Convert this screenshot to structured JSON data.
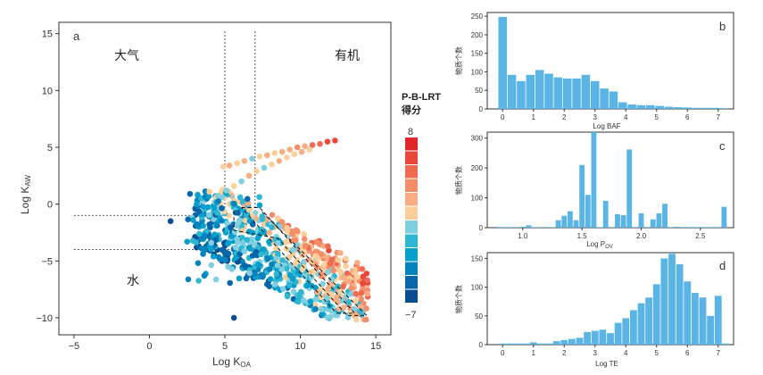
{
  "chart_data": [
    {
      "panel": "a",
      "type": "scatter",
      "xlabel": "Log K",
      "xlabel_sub": "OA",
      "ylabel": "Log K",
      "ylabel_sub": "AW",
      "xlim": [
        -6,
        16
      ],
      "ylim": [
        -11.5,
        16
      ],
      "xticks": [
        -5,
        0,
        5,
        10,
        15
      ],
      "yticks": [
        -10,
        -5,
        0,
        5,
        10,
        15
      ],
      "region_labels": {
        "top_left": "大气",
        "top_right": "有机",
        "bottom_left": "水"
      },
      "colorbar": {
        "title_line1": "P-B-LRT",
        "title_line2": "得分",
        "max_label": "8",
        "min_label": "−7",
        "colors": [
          "#e0282a",
          "#e8473a",
          "#ef6a50",
          "#f48e6a",
          "#f8ad85",
          "#fbcf9a",
          "#7fcfe0",
          "#2fb7d1",
          "#079fcc",
          "#0682bd",
          "#0866a8",
          "#0a4e91"
        ]
      },
      "guide_lines": {
        "vertical_x": [
          5,
          7
        ],
        "horizontal_y": [
          -1,
          -4
        ]
      },
      "series": [
        {
          "name": "upper-band",
          "x": [
            4.9,
            5.3,
            5.8,
            6.3,
            6.8,
            7.3,
            7.8,
            8.3,
            8.8,
            9.3,
            9.8,
            10.3,
            10.8,
            11.3,
            11.8,
            12.3,
            5.1,
            5.6,
            6.1,
            6.6,
            7.1,
            7.6,
            8.1,
            8.6,
            9.1,
            9.6,
            10.1,
            10.6
          ],
          "y": [
            3.3,
            3.4,
            3.6,
            3.8,
            4.0,
            4.2,
            4.3,
            4.5,
            4.6,
            4.8,
            5.0,
            5.1,
            5.2,
            5.3,
            5.5,
            5.6,
            1.2,
            1.6,
            2.0,
            2.5,
            2.9,
            3.2,
            3.5,
            3.8,
            4.1,
            4.4,
            4.6,
            4.8
          ],
          "score": [
            1,
            2,
            1,
            2,
            0,
            1,
            2,
            1,
            3,
            2,
            4,
            3,
            5,
            5,
            6,
            6,
            0,
            1,
            0,
            2,
            1,
            0,
            1,
            2,
            1,
            1,
            2,
            1
          ]
        }
      ]
    },
    {
      "panel": "b",
      "type": "bar",
      "xlabel": "Log BAF",
      "ylabel": "物质个数",
      "xlim": [
        -0.5,
        7.5
      ],
      "ylim": [
        0,
        260
      ],
      "xticks": [
        0,
        1,
        2,
        3,
        4,
        5,
        6,
        7
      ],
      "yticks": [
        0,
        50,
        100,
        150,
        200,
        250
      ],
      "bin_width": 0.3,
      "x": [
        0.0,
        0.3,
        0.6,
        0.9,
        1.2,
        1.5,
        1.8,
        2.1,
        2.4,
        2.7,
        3.0,
        3.3,
        3.6,
        3.9,
        4.2,
        4.5,
        4.8,
        5.1,
        5.4,
        5.7,
        6.0,
        6.3,
        6.6,
        6.9,
        7.2
      ],
      "values": [
        248,
        92,
        75,
        92,
        105,
        95,
        85,
        82,
        82,
        92,
        75,
        55,
        47,
        18,
        12,
        10,
        10,
        8,
        6,
        5,
        4,
        3,
        3,
        3,
        2
      ]
    },
    {
      "panel": "c",
      "type": "bar",
      "xlabel": "Log P",
      "xlabel_sub": "OV",
      "ylabel": "物质个数",
      "xlim": [
        0.7,
        2.78
      ],
      "ylim": [
        0,
        320
      ],
      "xticks": [
        1.0,
        1.5,
        2.0,
        2.5
      ],
      "yticks": [
        0,
        100,
        200,
        300
      ],
      "bin_width": 0.05,
      "x": [
        0.8,
        0.85,
        0.9,
        0.95,
        1.0,
        1.05,
        1.1,
        1.15,
        1.2,
        1.25,
        1.3,
        1.35,
        1.4,
        1.45,
        1.5,
        1.55,
        1.6,
        1.65,
        1.7,
        1.75,
        1.8,
        1.85,
        1.9,
        1.95,
        2.0,
        2.05,
        2.1,
        2.15,
        2.2,
        2.25,
        2.3,
        2.35,
        2.4,
        2.45,
        2.5,
        2.55,
        2.6,
        2.65,
        2.7
      ],
      "values": [
        2,
        2,
        2,
        2,
        3,
        8,
        2,
        2,
        2,
        2,
        25,
        40,
        55,
        25,
        210,
        110,
        320,
        2,
        90,
        2,
        45,
        42,
        262,
        2,
        48,
        2,
        28,
        48,
        80,
        2,
        3,
        2,
        2,
        2,
        2,
        2,
        2,
        2,
        70
      ]
    },
    {
      "panel": "d",
      "type": "bar",
      "xlabel": "Log TE",
      "ylabel": "物质个数",
      "xlim": [
        -0.5,
        7.5
      ],
      "ylim": [
        0,
        160
      ],
      "xticks": [
        0,
        1,
        2,
        3,
        4,
        5,
        6,
        7
      ],
      "yticks": [
        0,
        50,
        100,
        150
      ],
      "bin_width": 0.25,
      "x": [
        0.0,
        0.25,
        0.5,
        0.75,
        1.0,
        1.25,
        1.5,
        1.75,
        2.0,
        2.25,
        2.5,
        2.75,
        3.0,
        3.25,
        3.5,
        3.75,
        4.0,
        4.25,
        4.5,
        4.75,
        5.0,
        5.25,
        5.5,
        5.75,
        6.0,
        6.25,
        6.5,
        6.75,
        7.0,
        7.25
      ],
      "values": [
        2,
        2,
        2,
        2,
        4,
        2,
        2,
        6,
        8,
        10,
        12,
        22,
        24,
        26,
        20,
        38,
        46,
        60,
        72,
        82,
        105,
        150,
        158,
        140,
        110,
        90,
        82,
        50,
        85,
        2
      ]
    }
  ]
}
